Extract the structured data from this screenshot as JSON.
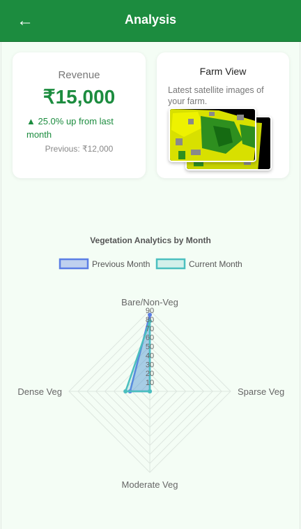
{
  "header": {
    "back_icon": "←",
    "title": "Analysis"
  },
  "revenue": {
    "label": "Revenue",
    "value": "₹15,000",
    "change": "▲ 25.0% up from last month",
    "previous": "Previous: ₹12,000"
  },
  "farm_view": {
    "title": "Farm View",
    "description": "Latest satellite images of your farm."
  },
  "chart_data": {
    "type": "radar",
    "title": "Vegetation Analytics by Month",
    "axes": [
      "Bare/Non-Veg",
      "Sparse Veg",
      "Moderate Veg",
      "Dense Veg"
    ],
    "ticks": [
      10,
      20,
      30,
      40,
      50,
      60,
      70,
      80,
      90
    ],
    "range": [
      0,
      90
    ],
    "legend_position": "top",
    "series": [
      {
        "name": "Previous Month",
        "values": [
          85,
          0,
          0,
          22
        ],
        "color": "#5b7ee5",
        "fill": "rgba(91,126,229,0.35)"
      },
      {
        "name": "Current Month",
        "values": [
          78,
          0,
          0,
          27
        ],
        "color": "#4bbfbf",
        "fill": "rgba(75,191,191,0.2)"
      }
    ]
  }
}
